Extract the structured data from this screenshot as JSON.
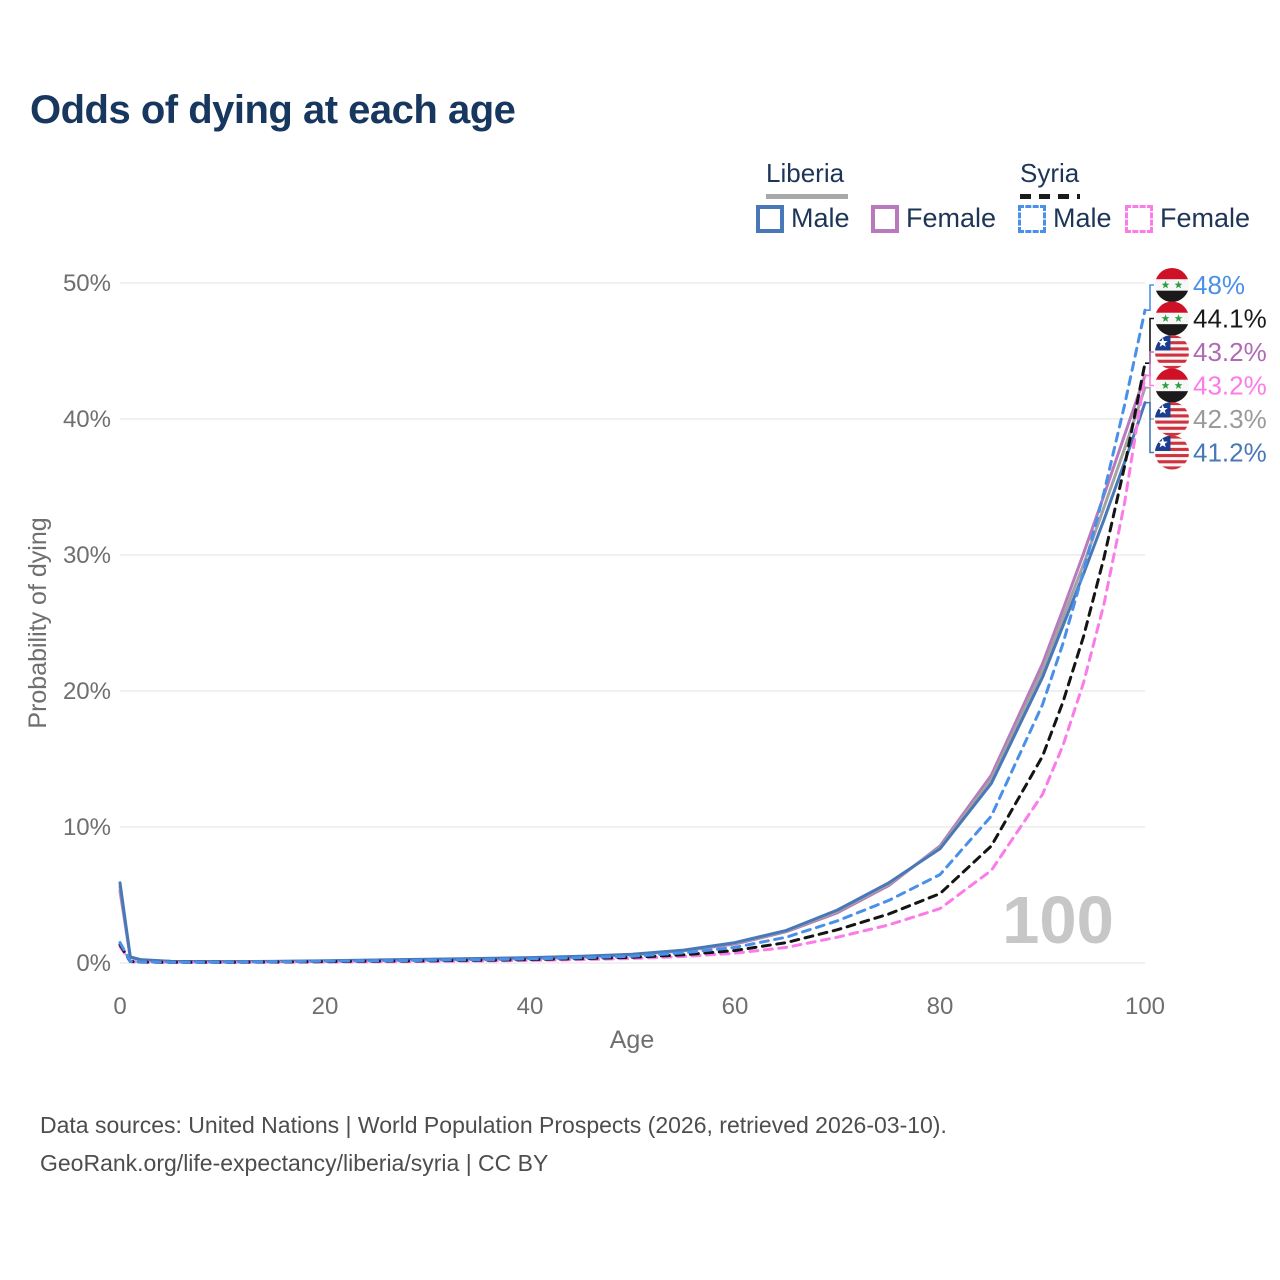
{
  "title": "Odds of dying at each age",
  "watermark": "100",
  "legend": {
    "groups": [
      {
        "name": "Liberia",
        "line_style": "solid",
        "underline_color": "#a8a8a8",
        "items": [
          {
            "label": "Male",
            "color": "#4878b8"
          },
          {
            "label": "Female",
            "color": "#b879bd"
          }
        ]
      },
      {
        "name": "Syria",
        "line_style": "dashed",
        "underline_color": "#1a1a1a",
        "items": [
          {
            "label": "Male",
            "color": "#4a90e8"
          },
          {
            "label": "Female",
            "color": "#fb7ce8"
          }
        ]
      }
    ]
  },
  "footer": {
    "line1": "Data sources: United Nations | World Population Prospects (2026, retrieved 2026-03-10).",
    "line2": "GeoRank.org/life-expectancy/liberia/syria | CC BY"
  },
  "chart_data": {
    "type": "line",
    "title": "Odds of dying at each age",
    "xlabel": "Age",
    "ylabel": "Probability of dying",
    "xlim": [
      0,
      100
    ],
    "ylim": [
      0,
      50
    ],
    "grid": "horizontal",
    "grid_color": "#ebebeb",
    "axis_text_color": "#6f6f6f",
    "x_ticks": [
      {
        "v": 0,
        "label": "0"
      },
      {
        "v": 20,
        "label": "20"
      },
      {
        "v": 40,
        "label": "40"
      },
      {
        "v": 60,
        "label": "60"
      },
      {
        "v": 80,
        "label": "80"
      },
      {
        "v": 100,
        "label": "100"
      }
    ],
    "y_ticks": [
      {
        "v": 0,
        "label": "0%"
      },
      {
        "v": 10,
        "label": "10%"
      },
      {
        "v": 20,
        "label": "20%"
      },
      {
        "v": 30,
        "label": "30%"
      },
      {
        "v": 40,
        "label": "40%"
      },
      {
        "v": 50,
        "label": "50%"
      }
    ],
    "x": [
      0,
      1,
      2,
      5,
      10,
      15,
      20,
      25,
      30,
      35,
      40,
      45,
      50,
      55,
      60,
      65,
      70,
      75,
      80,
      85,
      90,
      92,
      94,
      96,
      98,
      100
    ],
    "series": [
      {
        "id": "liberia-female",
        "name": "Liberia Female",
        "country": "liberia",
        "dashed": false,
        "color": "#b879bd",
        "label_color": "#b06ab5",
        "end_label": "43.2%",
        "label_slot": 2,
        "flag_icon": "liberia-flag-icon",
        "values": [
          5.3,
          0.4,
          0.22,
          0.11,
          0.09,
          0.1,
          0.14,
          0.18,
          0.24,
          0.29,
          0.35,
          0.45,
          0.6,
          0.9,
          1.4,
          2.3,
          3.7,
          5.7,
          8.6,
          13.8,
          22.0,
          26.0,
          30.1,
          34.4,
          38.8,
          43.2
        ]
      },
      {
        "id": "liberia-both",
        "name": "Liberia Both sexes",
        "country": "liberia",
        "dashed": false,
        "color": "#a3a3a3",
        "label_color": "#9a9a9a",
        "end_label": "42.3%",
        "label_slot": 4,
        "flag_icon": "liberia-flag-icon",
        "values": [
          5.6,
          0.42,
          0.23,
          0.11,
          0.09,
          0.11,
          0.15,
          0.2,
          0.26,
          0.31,
          0.37,
          0.47,
          0.62,
          0.92,
          1.45,
          2.35,
          3.8,
          5.8,
          8.5,
          13.5,
          21.5,
          25.4,
          29.3,
          33.5,
          37.8,
          42.3
        ]
      },
      {
        "id": "liberia-male",
        "name": "Liberia Male",
        "country": "liberia",
        "dashed": false,
        "color": "#4878b8",
        "label_color": "#4878b8",
        "end_label": "41.2%",
        "label_slot": 5,
        "flag_icon": "liberia-flag-icon",
        "values": [
          5.9,
          0.45,
          0.25,
          0.12,
          0.1,
          0.12,
          0.17,
          0.22,
          0.28,
          0.33,
          0.4,
          0.5,
          0.65,
          0.95,
          1.5,
          2.4,
          3.9,
          5.9,
          8.4,
          13.2,
          21.0,
          24.8,
          28.6,
          32.6,
          36.8,
          41.2
        ]
      },
      {
        "id": "syria-female",
        "name": "Syria Female",
        "country": "syria",
        "dashed": true,
        "color": "#fb7ce8",
        "label_color": "#fb7ce8",
        "end_label": "43.2%",
        "label_slot": 3,
        "flag_icon": "syria-flag-icon",
        "values": [
          1.2,
          0.1,
          0.06,
          0.04,
          0.04,
          0.05,
          0.07,
          0.09,
          0.12,
          0.15,
          0.19,
          0.25,
          0.33,
          0.48,
          0.72,
          1.15,
          1.9,
          2.8,
          4.0,
          6.8,
          12.4,
          16.0,
          20.6,
          26.4,
          33.8,
          43.2
        ]
      },
      {
        "id": "syria-both",
        "name": "Syria Both sexes",
        "country": "syria",
        "dashed": true,
        "color": "#141414",
        "label_color": "#1a1a1a",
        "end_label": "44.1%",
        "label_slot": 1,
        "flag_icon": "syria-flag-icon",
        "values": [
          1.35,
          0.11,
          0.07,
          0.05,
          0.05,
          0.07,
          0.1,
          0.13,
          0.16,
          0.2,
          0.25,
          0.32,
          0.42,
          0.6,
          0.92,
          1.5,
          2.45,
          3.6,
          5.1,
          8.6,
          15.2,
          19.2,
          24.0,
          29.8,
          36.5,
          44.1
        ]
      },
      {
        "id": "syria-male",
        "name": "Syria Male",
        "country": "syria",
        "dashed": true,
        "color": "#4a90e8",
        "label_color": "#4a90e8",
        "end_label": "48%",
        "label_slot": 0,
        "flag_icon": "syria-flag-icon",
        "values": [
          1.5,
          0.12,
          0.08,
          0.06,
          0.06,
          0.09,
          0.13,
          0.16,
          0.2,
          0.24,
          0.3,
          0.38,
          0.5,
          0.75,
          1.15,
          1.9,
          3.1,
          4.6,
          6.5,
          10.8,
          19.0,
          23.5,
          28.8,
          34.6,
          41.0,
          48.0
        ]
      }
    ],
    "flag_colors": {
      "syria": {
        "red": "#ce1126",
        "white": "#f7f7f7",
        "black": "#1a1a1a",
        "green": "#2e9e45"
      },
      "liberia": {
        "red": "#d0313e",
        "white": "#f7f7f7",
        "blue": "#1b3d8f",
        "star": "#ffffff"
      }
    }
  }
}
